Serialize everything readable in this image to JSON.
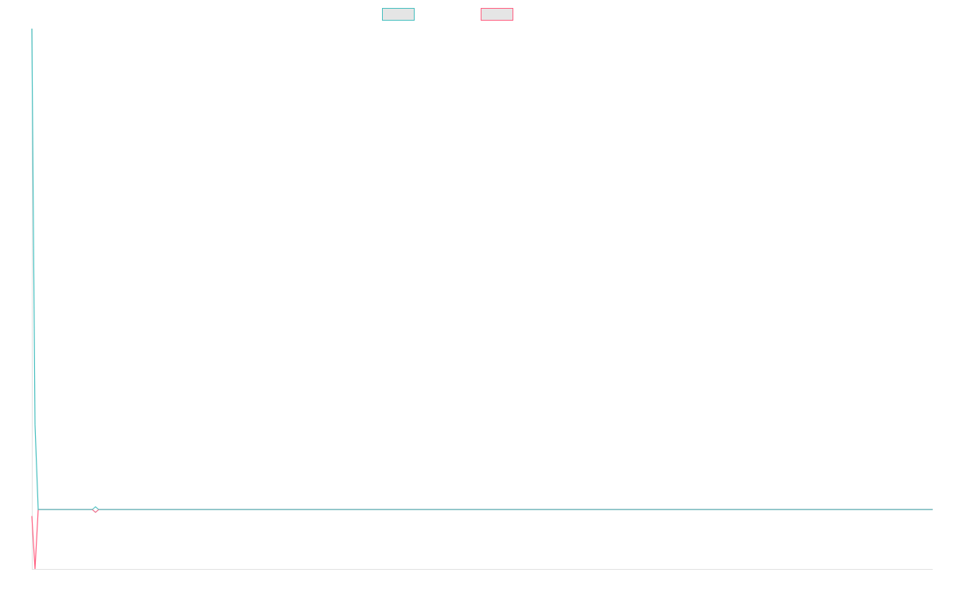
{
  "chart_data": {
    "type": "line",
    "title": "",
    "xlabel": "",
    "ylabel": "",
    "xlim": [
      0,
      283
    ],
    "ylim": [
      0,
      100
    ],
    "grid": false,
    "legend": "top-center",
    "series": [
      {
        "color": "#4bc0c0",
        "x": [
          0,
          1,
          2,
          283
        ],
        "y": [
          100,
          26.7,
          11,
          11
        ]
      },
      {
        "color": "#ff6384",
        "x": [
          0,
          1,
          2,
          283
        ],
        "y": [
          9.8,
          0,
          11,
          11
        ]
      }
    ],
    "highlighted_point": {
      "x": 20,
      "y": 11
    }
  }
}
